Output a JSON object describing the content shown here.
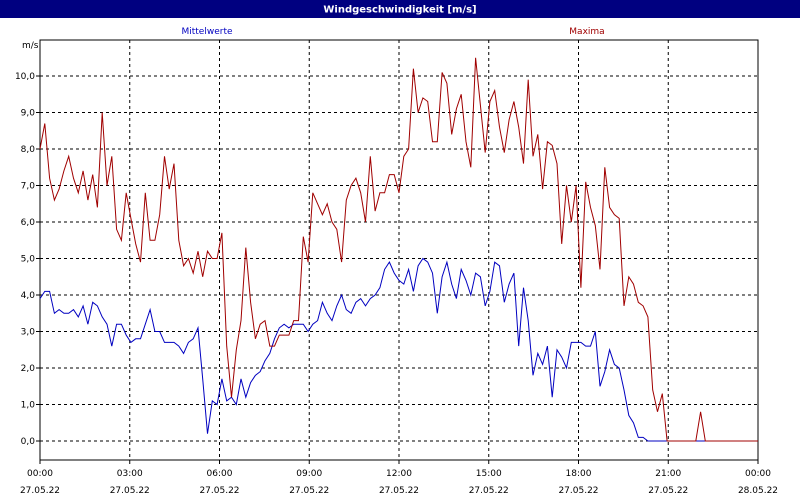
{
  "window": {
    "title": "Windgeschwindigkeit [m/s]"
  },
  "colors": {
    "title_bar": "#000080",
    "mean": "#0000c0",
    "max": "#a00000",
    "grid": "#000000",
    "background": "#ffffff"
  },
  "chart_data": {
    "type": "line",
    "title": "Windgeschwindigkeit [m/s]",
    "ylabel": "m/s",
    "xlabel": "",
    "ylim": [
      0,
      11
    ],
    "yticks": [
      "0,0",
      "1,0",
      "2,0",
      "3,0",
      "4,0",
      "5,0",
      "6,0",
      "7,0",
      "8,0",
      "9,0",
      "10,0"
    ],
    "ytick_values": [
      0,
      1,
      2,
      3,
      4,
      5,
      6,
      7,
      8,
      9,
      10
    ],
    "xlim_hours": [
      0,
      24
    ],
    "xticks": [
      {
        "time": "00:00",
        "date": "27.05.22"
      },
      {
        "time": "03:00",
        "date": "27.05.22"
      },
      {
        "time": "06:00",
        "date": "27.05.22"
      },
      {
        "time": "09:00",
        "date": "27.05.22"
      },
      {
        "time": "12:00",
        "date": "27.05.22"
      },
      {
        "time": "15:00",
        "date": "27.05.22"
      },
      {
        "time": "18:00",
        "date": "27.05.22"
      },
      {
        "time": "21:00",
        "date": "27.05.22"
      },
      {
        "time": "00:00",
        "date": "28.05.22"
      }
    ],
    "grid": true,
    "legend": "top",
    "series": [
      {
        "name": "Mittelwerte",
        "color": "#0000c0",
        "points": [
          [
            0.0,
            3.9
          ],
          [
            0.2,
            4.1
          ],
          [
            0.4,
            4.1
          ],
          [
            0.6,
            3.5
          ],
          [
            0.8,
            3.6
          ],
          [
            1.0,
            3.5
          ],
          [
            1.2,
            3.5
          ],
          [
            1.4,
            3.6
          ],
          [
            1.6,
            3.4
          ],
          [
            1.8,
            3.7
          ],
          [
            2.0,
            3.2
          ],
          [
            2.2,
            3.8
          ],
          [
            2.4,
            3.7
          ],
          [
            2.6,
            3.4
          ],
          [
            2.8,
            3.2
          ],
          [
            3.0,
            2.6
          ],
          [
            3.2,
            3.2
          ],
          [
            3.4,
            3.2
          ],
          [
            3.6,
            2.9
          ],
          [
            3.8,
            2.7
          ],
          [
            4.0,
            2.8
          ],
          [
            4.2,
            2.8
          ],
          [
            4.4,
            3.2
          ],
          [
            4.6,
            3.6
          ],
          [
            4.8,
            3.0
          ],
          [
            5.0,
            3.0
          ],
          [
            5.2,
            2.7
          ],
          [
            5.4,
            2.7
          ],
          [
            5.6,
            2.7
          ],
          [
            5.8,
            2.6
          ],
          [
            6.0,
            2.4
          ],
          [
            6.2,
            2.7
          ],
          [
            6.4,
            2.8
          ],
          [
            6.6,
            3.1
          ],
          [
            6.8,
            1.7
          ],
          [
            7.0,
            0.2
          ],
          [
            7.2,
            1.1
          ],
          [
            7.4,
            1.0
          ],
          [
            7.6,
            1.7
          ],
          [
            7.8,
            1.1
          ],
          [
            8.0,
            1.2
          ],
          [
            8.2,
            1.0
          ],
          [
            8.4,
            1.7
          ],
          [
            8.6,
            1.2
          ],
          [
            8.8,
            1.6
          ],
          [
            9.0,
            1.8
          ],
          [
            9.2,
            1.9
          ],
          [
            9.4,
            2.2
          ],
          [
            9.6,
            2.4
          ],
          [
            9.8,
            2.8
          ],
          [
            10.0,
            3.1
          ],
          [
            10.2,
            3.2
          ],
          [
            10.4,
            3.1
          ],
          [
            10.6,
            3.2
          ],
          [
            10.8,
            3.2
          ],
          [
            11.0,
            3.2
          ],
          [
            11.2,
            3.0
          ],
          [
            11.4,
            3.2
          ],
          [
            11.6,
            3.3
          ],
          [
            11.8,
            3.8
          ],
          [
            12.0,
            3.5
          ],
          [
            12.2,
            3.3
          ],
          [
            12.4,
            3.7
          ],
          [
            12.6,
            4.0
          ],
          [
            12.8,
            3.6
          ],
          [
            13.0,
            3.5
          ],
          [
            13.2,
            3.8
          ],
          [
            13.4,
            3.9
          ],
          [
            13.6,
            3.7
          ],
          [
            13.8,
            3.9
          ],
          [
            14.0,
            4.0
          ],
          [
            14.2,
            4.2
          ],
          [
            14.4,
            4.7
          ],
          [
            14.6,
            4.9
          ],
          [
            14.8,
            4.6
          ],
          [
            15.0,
            4.4
          ],
          [
            15.2,
            4.3
          ],
          [
            15.4,
            4.7
          ],
          [
            15.6,
            4.1
          ],
          [
            15.8,
            4.8
          ],
          [
            16.0,
            5.0
          ],
          [
            16.2,
            4.9
          ],
          [
            16.4,
            4.6
          ],
          [
            16.6,
            3.5
          ],
          [
            16.8,
            4.5
          ],
          [
            17.0,
            4.9
          ],
          [
            17.2,
            4.3
          ],
          [
            17.4,
            3.9
          ],
          [
            17.6,
            4.7
          ],
          [
            17.8,
            4.4
          ],
          [
            18.0,
            4.0
          ],
          [
            18.2,
            4.6
          ],
          [
            18.4,
            4.5
          ],
          [
            18.6,
            3.7
          ],
          [
            18.8,
            4.1
          ],
          [
            19.0,
            4.9
          ],
          [
            19.2,
            4.8
          ],
          [
            19.4,
            3.8
          ],
          [
            19.6,
            4.3
          ],
          [
            19.8,
            4.6
          ],
          [
            20.0,
            2.6
          ],
          [
            20.2,
            4.2
          ],
          [
            20.4,
            3.3
          ],
          [
            20.6,
            1.8
          ],
          [
            20.8,
            2.4
          ],
          [
            21.0,
            2.1
          ],
          [
            21.2,
            2.6
          ],
          [
            21.4,
            1.2
          ],
          [
            21.6,
            2.5
          ],
          [
            21.8,
            2.3
          ],
          [
            22.0,
            2.0
          ],
          [
            22.2,
            2.7
          ],
          [
            22.4,
            2.7
          ],
          [
            22.6,
            2.7
          ],
          [
            22.8,
            2.6
          ],
          [
            23.0,
            2.6
          ],
          [
            23.2,
            3.0
          ],
          [
            23.4,
            1.5
          ],
          [
            23.6,
            1.9
          ],
          [
            23.8,
            2.5
          ],
          [
            24.0,
            2.1
          ],
          [
            24.2,
            2.0
          ],
          [
            24.4,
            1.4
          ],
          [
            24.6,
            0.7
          ],
          [
            24.8,
            0.5
          ],
          [
            25.0,
            0.1
          ],
          [
            25.2,
            0.1
          ],
          [
            25.4,
            0.0
          ],
          [
            26.0,
            0.0
          ],
          [
            27.0,
            0.0
          ],
          [
            28.0,
            0.0
          ],
          [
            29.0,
            0.0
          ],
          [
            30.0,
            0.0
          ]
        ]
      },
      {
        "name": "Maxima",
        "color": "#a00000",
        "points": [
          [
            0.0,
            8.0
          ],
          [
            0.2,
            8.7
          ],
          [
            0.4,
            7.2
          ],
          [
            0.6,
            6.6
          ],
          [
            0.8,
            6.9
          ],
          [
            1.0,
            7.4
          ],
          [
            1.2,
            7.8
          ],
          [
            1.4,
            7.2
          ],
          [
            1.6,
            6.8
          ],
          [
            1.8,
            7.4
          ],
          [
            2.0,
            6.6
          ],
          [
            2.2,
            7.3
          ],
          [
            2.4,
            6.4
          ],
          [
            2.6,
            9.0
          ],
          [
            2.8,
            7.0
          ],
          [
            3.0,
            7.8
          ],
          [
            3.2,
            5.8
          ],
          [
            3.4,
            5.5
          ],
          [
            3.6,
            6.8
          ],
          [
            3.8,
            6.1
          ],
          [
            4.0,
            5.4
          ],
          [
            4.2,
            4.9
          ],
          [
            4.4,
            6.8
          ],
          [
            4.6,
            5.5
          ],
          [
            4.8,
            5.5
          ],
          [
            5.0,
            6.2
          ],
          [
            5.2,
            7.8
          ],
          [
            5.4,
            6.9
          ],
          [
            5.6,
            7.6
          ],
          [
            5.8,
            5.5
          ],
          [
            6.0,
            4.8
          ],
          [
            6.2,
            5.0
          ],
          [
            6.4,
            4.6
          ],
          [
            6.6,
            5.2
          ],
          [
            6.8,
            4.5
          ],
          [
            7.0,
            5.2
          ],
          [
            7.2,
            5.0
          ],
          [
            7.4,
            5.0
          ],
          [
            7.6,
            5.7
          ],
          [
            7.8,
            2.6
          ],
          [
            8.0,
            1.2
          ],
          [
            8.2,
            2.5
          ],
          [
            8.4,
            3.3
          ],
          [
            8.6,
            5.3
          ],
          [
            8.8,
            3.8
          ],
          [
            9.0,
            2.8
          ],
          [
            9.2,
            3.2
          ],
          [
            9.4,
            3.3
          ],
          [
            9.6,
            2.6
          ],
          [
            9.8,
            2.6
          ],
          [
            10.0,
            2.9
          ],
          [
            10.2,
            2.9
          ],
          [
            10.4,
            2.9
          ],
          [
            10.6,
            3.3
          ],
          [
            10.8,
            3.3
          ],
          [
            11.0,
            5.6
          ],
          [
            11.2,
            4.9
          ],
          [
            11.4,
            6.8
          ],
          [
            11.6,
            6.5
          ],
          [
            11.8,
            6.2
          ],
          [
            12.0,
            6.5
          ],
          [
            12.2,
            6.0
          ],
          [
            12.4,
            5.8
          ],
          [
            12.6,
            4.9
          ],
          [
            12.8,
            6.6
          ],
          [
            13.0,
            7.0
          ],
          [
            13.2,
            7.2
          ],
          [
            13.4,
            6.8
          ],
          [
            13.6,
            6.0
          ],
          [
            13.8,
            7.8
          ],
          [
            14.0,
            6.3
          ],
          [
            14.2,
            6.8
          ],
          [
            14.4,
            6.8
          ],
          [
            14.6,
            7.3
          ],
          [
            14.8,
            7.3
          ],
          [
            15.0,
            6.8
          ],
          [
            15.2,
            7.8
          ],
          [
            15.4,
            8.0
          ],
          [
            15.6,
            10.2
          ],
          [
            15.8,
            9.0
          ],
          [
            16.0,
            9.4
          ],
          [
            16.2,
            9.3
          ],
          [
            16.4,
            8.2
          ],
          [
            16.6,
            8.2
          ],
          [
            16.8,
            10.1
          ],
          [
            17.0,
            9.8
          ],
          [
            17.2,
            8.4
          ],
          [
            17.4,
            9.1
          ],
          [
            17.6,
            9.5
          ],
          [
            17.8,
            8.2
          ],
          [
            18.0,
            7.5
          ],
          [
            18.2,
            10.5
          ],
          [
            18.4,
            9.2
          ],
          [
            18.6,
            7.9
          ],
          [
            18.8,
            9.3
          ],
          [
            19.0,
            9.6
          ],
          [
            19.2,
            8.6
          ],
          [
            19.4,
            7.9
          ],
          [
            19.6,
            8.8
          ],
          [
            19.8,
            9.3
          ],
          [
            20.0,
            8.6
          ],
          [
            20.2,
            7.6
          ],
          [
            20.4,
            9.9
          ],
          [
            20.6,
            7.8
          ],
          [
            20.8,
            8.4
          ],
          [
            21.0,
            6.9
          ],
          [
            21.2,
            8.2
          ],
          [
            21.4,
            8.1
          ],
          [
            21.6,
            7.6
          ],
          [
            21.8,
            5.4
          ],
          [
            22.0,
            7.0
          ],
          [
            22.2,
            6.0
          ],
          [
            22.4,
            7.0
          ],
          [
            22.6,
            4.2
          ],
          [
            22.8,
            7.1
          ],
          [
            23.0,
            6.4
          ],
          [
            23.2,
            5.9
          ],
          [
            23.4,
            4.7
          ],
          [
            23.6,
            7.5
          ],
          [
            23.8,
            6.4
          ],
          [
            24.0,
            6.2
          ],
          [
            24.2,
            6.1
          ],
          [
            24.4,
            3.7
          ],
          [
            24.6,
            4.5
          ],
          [
            24.8,
            4.3
          ],
          [
            25.0,
            3.8
          ],
          [
            25.2,
            3.7
          ],
          [
            25.4,
            3.4
          ],
          [
            25.6,
            1.4
          ],
          [
            25.8,
            0.8
          ],
          [
            26.0,
            1.3
          ],
          [
            26.2,
            0.0
          ],
          [
            27.0,
            0.0
          ],
          [
            27.4,
            0.0
          ],
          [
            27.6,
            0.8
          ],
          [
            27.8,
            0.0
          ],
          [
            28.4,
            0.0
          ],
          [
            30.0,
            0.0
          ]
        ]
      }
    ]
  }
}
